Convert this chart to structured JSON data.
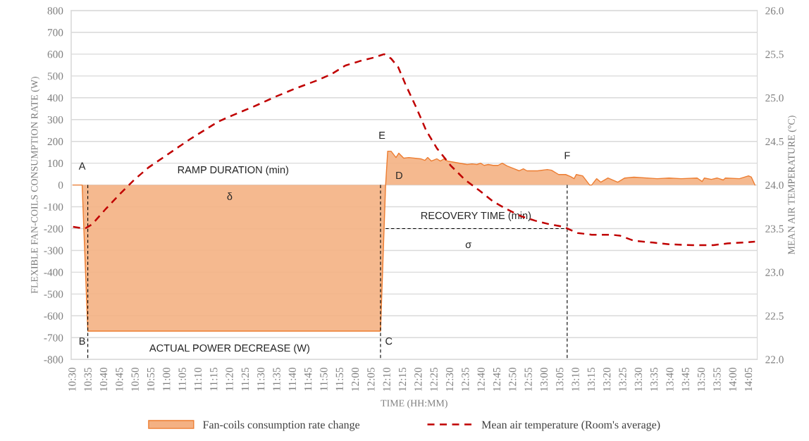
{
  "chart_data": {
    "type": "area",
    "xlabel": "TIME (HH:MM)",
    "ylabel": "FLEXIBLE FAN-COILS CONSUMPTION RATE (W)",
    "y2label": "MEAN AIR TEMPERATURE (°C)",
    "xlim": [
      10.49,
      14.125
    ],
    "xticks": [
      {
        "value": 10.5,
        "label": "10:30"
      },
      {
        "value": 10.5833,
        "label": "10:35"
      },
      {
        "value": 10.6667,
        "label": "10:40"
      },
      {
        "value": 10.75,
        "label": "10:45"
      },
      {
        "value": 10.8333,
        "label": "10:50"
      },
      {
        "value": 10.9167,
        "label": "10:55"
      },
      {
        "value": 11,
        "label": "11:00"
      },
      {
        "value": 11.0833,
        "label": "11:05"
      },
      {
        "value": 11.1667,
        "label": "11:10"
      },
      {
        "value": 11.25,
        "label": "11:15"
      },
      {
        "value": 11.3333,
        "label": "11:20"
      },
      {
        "value": 11.4167,
        "label": "11:25"
      },
      {
        "value": 11.5,
        "label": "11:30"
      },
      {
        "value": 11.5833,
        "label": "11:35"
      },
      {
        "value": 11.6667,
        "label": "11:40"
      },
      {
        "value": 11.75,
        "label": "11:45"
      },
      {
        "value": 11.8333,
        "label": "11:50"
      },
      {
        "value": 11.9167,
        "label": "11:55"
      },
      {
        "value": 12,
        "label": "12:00"
      },
      {
        "value": 12.0833,
        "label": "12:05"
      },
      {
        "value": 12.1667,
        "label": "12:10"
      },
      {
        "value": 12.25,
        "label": "12:15"
      },
      {
        "value": 12.3333,
        "label": "12:20"
      },
      {
        "value": 12.4167,
        "label": "12:25"
      },
      {
        "value": 12.5,
        "label": "12:30"
      },
      {
        "value": 12.5833,
        "label": "12:35"
      },
      {
        "value": 12.6667,
        "label": "12:40"
      },
      {
        "value": 12.75,
        "label": "12:45"
      },
      {
        "value": 12.8333,
        "label": "12:50"
      },
      {
        "value": 12.9167,
        "label": "12:55"
      },
      {
        "value": 13,
        "label": "13:00"
      },
      {
        "value": 13.0833,
        "label": "13:05"
      },
      {
        "value": 13.1667,
        "label": "13:10"
      },
      {
        "value": 13.25,
        "label": "13:15"
      },
      {
        "value": 13.3333,
        "label": "13:20"
      },
      {
        "value": 13.4167,
        "label": "13:25"
      },
      {
        "value": 13.5,
        "label": "13:30"
      },
      {
        "value": 13.5833,
        "label": "13:35"
      },
      {
        "value": 13.6667,
        "label": "13:40"
      },
      {
        "value": 13.75,
        "label": "13:45"
      },
      {
        "value": 13.8333,
        "label": "13:50"
      },
      {
        "value": 13.9167,
        "label": "13:55"
      },
      {
        "value": 14,
        "label": "14:00"
      },
      {
        "value": 14.0833,
        "label": "14:05"
      }
    ],
    "ylim": [
      -800,
      800
    ],
    "yticks": [
      -800,
      -700,
      -600,
      -500,
      -400,
      -300,
      -200,
      -100,
      0,
      100,
      200,
      300,
      400,
      500,
      600,
      700,
      800
    ],
    "y2lim": [
      22,
      26
    ],
    "y2ticks": [
      {
        "value": 22,
        "label": "22.0"
      },
      {
        "value": 22.5,
        "label": "22.5"
      },
      {
        "value": 23,
        "label": "23.0"
      },
      {
        "value": 23.5,
        "label": "23.5"
      },
      {
        "value": 24,
        "label": "24.0"
      },
      {
        "value": 24.5,
        "label": "24.5"
      },
      {
        "value": 25,
        "label": "25.0"
      },
      {
        "value": 25.5,
        "label": "25.5"
      },
      {
        "value": 26,
        "label": "26.0"
      }
    ],
    "grid": "y",
    "legend": "bottom",
    "marker": "none",
    "series": [
      {
        "name": "Fan-coils consumption rate change",
        "color": "#f4b183",
        "x": [
          10.5,
          10.548,
          10.578,
          12.129,
          12.156,
          12.167,
          12.185,
          12.211,
          12.226,
          12.252,
          12.279,
          12.342,
          12.364,
          12.379,
          12.398,
          12.428,
          12.446,
          12.465,
          12.484,
          12.528,
          12.588,
          12.614,
          12.64,
          12.659,
          12.678,
          12.7,
          12.726,
          12.752,
          12.774,
          12.8,
          12.838,
          12.864,
          12.886,
          12.905,
          12.961,
          13.013,
          13.035,
          13.073,
          13.11,
          13.136,
          13.155,
          13.166,
          13.2,
          13.237,
          13.248,
          13.274,
          13.296,
          13.334,
          13.386,
          13.423,
          13.472,
          13.595,
          13.658,
          13.722,
          13.807,
          13.833,
          13.845,
          13.882,
          13.912,
          13.945,
          13.956,
          14.031,
          14.079,
          14.094,
          14.113
        ],
        "values": [
          0,
          0,
          -670,
          -670,
          0,
          155,
          155,
          126,
          146,
          123,
          126,
          120,
          113,
          126,
          110,
          120,
          110,
          120,
          110,
          103,
          94,
          97,
          94,
          100,
          90,
          94,
          90,
          90,
          100,
          87,
          74,
          65,
          74,
          65,
          65,
          71,
          68,
          48,
          48,
          39,
          29,
          48,
          42,
          0,
          0,
          29,
          13,
          32,
          13,
          32,
          36,
          29,
          32,
          29,
          32,
          16,
          32,
          26,
          32,
          23,
          32,
          29,
          42,
          36,
          0
        ]
      },
      {
        "name": "Mean air temperature (Room's average)",
        "type": "line",
        "axis": "y2",
        "color": "#c00000",
        "line_style": "dashed",
        "x": [
          10.5,
          10.563,
          10.601,
          10.675,
          10.75,
          10.824,
          10.899,
          10.974,
          11.048,
          11.123,
          11.197,
          11.272,
          11.346,
          11.458,
          11.57,
          11.682,
          11.794,
          11.868,
          11.943,
          12.018,
          12.092,
          12.148,
          12.185,
          12.223,
          12.26,
          12.316,
          12.372,
          12.428,
          12.502,
          12.577,
          12.651,
          12.726,
          12.8,
          12.875,
          12.95,
          13.024,
          13.099,
          13.173,
          13.248,
          13.349,
          13.397,
          13.472,
          13.572,
          13.658,
          13.781,
          13.893,
          13.968,
          14.113
        ],
        "values": [
          23.52,
          23.5,
          23.55,
          23.73,
          23.9,
          24.06,
          24.2,
          24.31,
          24.42,
          24.53,
          24.63,
          24.73,
          24.8,
          24.9,
          25.01,
          25.11,
          25.2,
          25.27,
          25.37,
          25.42,
          25.46,
          25.5,
          25.45,
          25.35,
          25.16,
          24.9,
          24.62,
          24.42,
          24.22,
          24.06,
          23.94,
          23.81,
          23.72,
          23.64,
          23.59,
          23.55,
          23.52,
          23.45,
          23.43,
          23.43,
          23.42,
          23.36,
          23.34,
          23.32,
          23.31,
          23.31,
          23.33,
          23.35
        ]
      },
      {
        "type": "line",
        "color": "#000000",
        "line_style": "dashed",
        "x": [
          10.578,
          10.578
        ],
        "values": [
          0,
          -800
        ]
      },
      {
        "type": "line",
        "color": "#000000",
        "line_style": "dashed",
        "x": [
          12.129,
          12.129
        ],
        "values": [
          0,
          -800
        ]
      },
      {
        "type": "line",
        "color": "#000000",
        "line_style": "dashed",
        "x": [
          13.118,
          13.118
        ],
        "values": [
          0,
          -800
        ]
      },
      {
        "type": "line",
        "color": "#000000",
        "line_style": "dashed",
        "x": [
          12.156,
          13.118
        ],
        "values": [
          -200,
          -200
        ]
      }
    ],
    "annotations": [
      "A",
      "B",
      "C",
      "D",
      "E",
      "F",
      "RAMP DURATION (min)",
      "δ",
      "ACTUAL POWER DECREASE (W)",
      "RECOVERY TIME (min)",
      "σ"
    ]
  }
}
